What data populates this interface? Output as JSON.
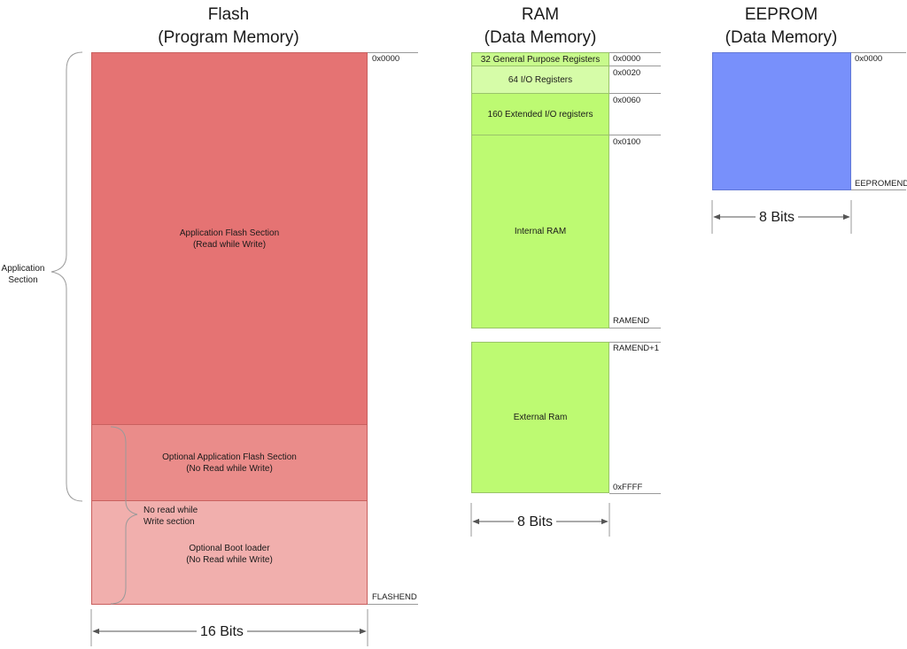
{
  "flash": {
    "title_line1": "Flash",
    "title_line2": "(Program Memory)",
    "blocks": [
      {
        "line1": "Application Flash Section",
        "line2": "(Read while Write)"
      },
      {
        "line1": "Optional Application Flash Section",
        "line2": "(No Read while Write)"
      },
      {
        "line1": "Optional Boot loader",
        "line2": "(No Read while Write)"
      }
    ],
    "addr_start": "0x0000",
    "addr_end": "FLASHEND",
    "width_label": "16 Bits",
    "bracket_app_line1": "Application",
    "bracket_app_line2": "Section",
    "bracket_nrww_line1": "No read while",
    "bracket_nrww_line2": "Write section",
    "colors": {
      "app": "#e57373",
      "optional": "#ea8c8a",
      "boot": "#f1afad"
    }
  },
  "ram": {
    "title_line1": "RAM",
    "title_line2": "(Data Memory)",
    "blocks": [
      {
        "label": "32 General Purpose Registers"
      },
      {
        "label": "64 I/O Registers"
      },
      {
        "label": "160 Extended I/O registers"
      },
      {
        "label": "Internal RAM"
      },
      {
        "label": "External Ram"
      }
    ],
    "addresses": [
      "0x0000",
      "0x0020",
      "0x0060",
      "0x0100",
      "RAMEND",
      "RAMEND+1",
      "0xFFFF"
    ],
    "width_label": "8 Bits",
    "colors": {
      "registers": "#c8fa8c",
      "io": "#d6fca8",
      "ram": "#bdfa72"
    }
  },
  "eeprom": {
    "title_line1": "EEPROM",
    "title_line2": "(Data Memory)",
    "addr_start": "0x0000",
    "addr_end": "EEPROMEND",
    "width_label": "8 Bits",
    "color": "#7890fb"
  }
}
